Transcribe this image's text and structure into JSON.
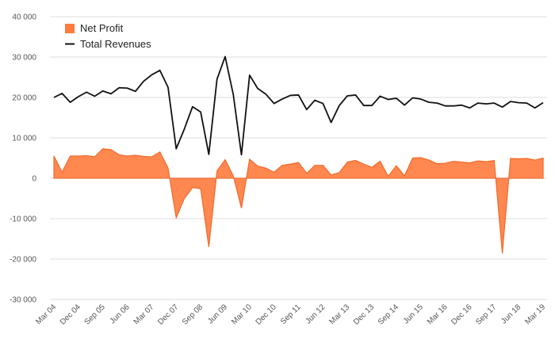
{
  "chart_data": {
    "type": "line",
    "title": "",
    "xlabel": "",
    "ylabel": "",
    "ylim": [
      -30000,
      40000
    ],
    "yticks": [
      -30000,
      -20000,
      -10000,
      0,
      10000,
      20000,
      30000,
      40000
    ],
    "ytick_labels": [
      "-30 000",
      "-20 000",
      "-10 000",
      "0",
      "10 000",
      "20 000",
      "30 000",
      "40 000"
    ],
    "xtick_labels": [
      "Mar 04",
      "Dec 04",
      "Sep 05",
      "Jun 06",
      "Mar 07",
      "Dec 07",
      "Sep 08",
      "Jun 09",
      "Mar 10",
      "Dec 10",
      "Sep 11",
      "Jun 12",
      "Mar 13",
      "Dec 13",
      "Sep 14",
      "Jun 15",
      "Mar 16",
      "Dec 16",
      "Sep 17",
      "Jun 18",
      "Mar 19"
    ],
    "grid": true,
    "legend": "top-left",
    "quarters_start": "Mar 04",
    "quarters_end": "Mar 19",
    "series": [
      {
        "name": "Net Profit",
        "kind": "area",
        "color": "#FF7A3D",
        "values": [
          5500,
          1500,
          5500,
          5500,
          5600,
          5300,
          7300,
          7100,
          5800,
          5500,
          5700,
          5400,
          5300,
          6500,
          2500,
          -9800,
          -5000,
          -2300,
          -2600,
          -17000,
          1800,
          4600,
          600,
          -7400,
          4700,
          3000,
          2500,
          1500,
          3200,
          3500,
          3900,
          1200,
          3200,
          3200,
          800,
          1400,
          4000,
          4400,
          3500,
          2700,
          4200,
          500,
          3100,
          600,
          5000,
          5100,
          4500,
          3600,
          3700,
          4200,
          4000,
          3800,
          4300,
          4100,
          4400,
          -18600,
          4900,
          4800,
          4900,
          4500,
          5000
        ]
      },
      {
        "name": "Total Revenues",
        "kind": "line",
        "color": "#111111",
        "values": [
          20000,
          21000,
          18800,
          20200,
          21300,
          20300,
          21600,
          20900,
          22400,
          22300,
          21500,
          24000,
          25600,
          26700,
          22500,
          7300,
          12200,
          17700,
          16400,
          5900,
          24500,
          30100,
          20700,
          5800,
          25500,
          22200,
          20800,
          18500,
          19600,
          20500,
          20600,
          17000,
          19300,
          18500,
          13800,
          18000,
          20400,
          20600,
          18000,
          18000,
          20300,
          19500,
          19800,
          18100,
          19900,
          19600,
          18800,
          18600,
          17900,
          17900,
          18100,
          17400,
          18600,
          18400,
          18600,
          17600,
          19000,
          18700,
          18600,
          17400,
          18700
        ]
      }
    ],
    "colors": {
      "grid": "#DDDDDD",
      "axis_text": "#555555",
      "background": "#FFFFFF"
    }
  }
}
